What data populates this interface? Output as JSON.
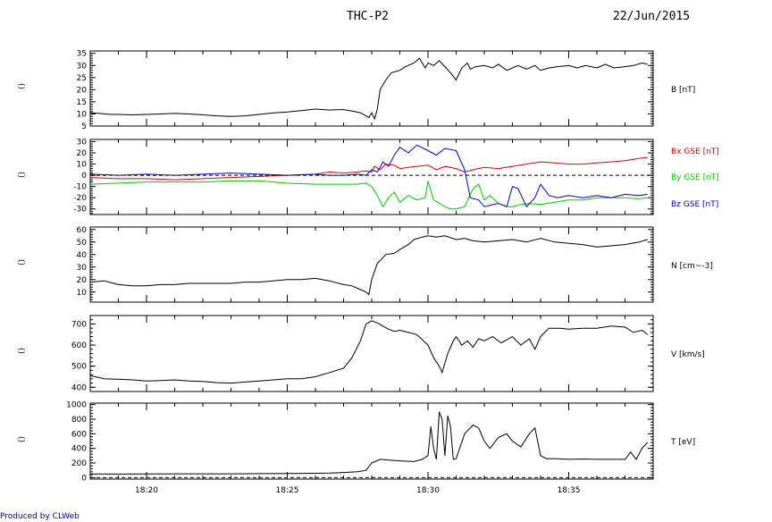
{
  "header": {
    "title": "THC-P2",
    "date": "22/Jun/2015"
  },
  "footer": {
    "text": "Produced by CLWeb"
  },
  "colors": {
    "axis": "#000000",
    "bx": "#dd0000",
    "by": "#00cc00",
    "bz": "#0000cc",
    "footer": "#00008b"
  },
  "chart_data": [
    {
      "type": "line",
      "ylabel_left": "()",
      "ylim": [
        5,
        36
      ],
      "yticks": [
        5,
        10,
        15,
        20,
        25,
        30,
        35
      ],
      "series": [
        {
          "name": "B [nT]",
          "x": [
            18.0,
            18.33,
            18.67,
            19.0,
            19.5,
            20.0,
            20.5,
            21.0,
            21.5,
            22.0,
            22.5,
            23.0,
            23.5,
            24.0,
            24.5,
            25.0,
            25.5,
            26.0,
            26.5,
            27.0,
            27.3,
            27.6,
            27.8,
            27.9,
            28.0,
            28.1,
            28.2,
            28.3,
            28.5,
            28.7,
            29.0,
            29.2,
            29.5,
            29.7,
            29.9,
            30.0,
            30.2,
            30.4,
            30.6,
            30.8,
            31.0,
            31.2,
            31.4,
            31.5,
            31.7,
            32.0,
            32.3,
            32.5,
            32.8,
            33.0,
            33.2,
            33.5,
            33.8,
            34.0,
            34.3,
            34.6,
            35.0,
            35.3,
            35.6,
            36.0,
            36.3,
            36.6,
            37.0,
            37.3,
            37.6,
            37.8
          ],
          "y": [
            10.5,
            10.2,
            9.8,
            9.8,
            9.6,
            9.8,
            10.0,
            10.2,
            10.0,
            9.6,
            9.2,
            9.0,
            9.2,
            9.8,
            10.4,
            10.8,
            11.4,
            12.0,
            11.6,
            11.8,
            11.2,
            10.5,
            9.2,
            8.5,
            10.5,
            8.0,
            12.0,
            20.0,
            24.0,
            27.0,
            28.0,
            29.5,
            31.0,
            33.0,
            29.0,
            31.0,
            30.0,
            32.0,
            29.5,
            27.0,
            24.0,
            29.0,
            31.0,
            28.5,
            29.5,
            30.0,
            29.0,
            30.5,
            28.0,
            29.0,
            30.0,
            28.5,
            30.0,
            28.0,
            29.0,
            29.5,
            30.0,
            29.0,
            30.0,
            29.0,
            30.5,
            29.0,
            29.5,
            30.0,
            31.0,
            30.5
          ],
          "color": "#000000"
        }
      ],
      "right_label": "B [nT]"
    },
    {
      "type": "line",
      "ylabel_left": "()",
      "ylim": [
        -35,
        32
      ],
      "yticks": [
        -30,
        -20,
        -10,
        0,
        10,
        20,
        30
      ],
      "zero_line": true,
      "series": [
        {
          "name": "Bx GSE [nT]",
          "color": "#dd0000",
          "x": [
            18.0,
            19.0,
            20.0,
            21.0,
            22.0,
            23.0,
            24.0,
            25.0,
            26.0,
            26.5,
            27.0,
            27.5,
            27.8,
            28.0,
            28.1,
            28.3,
            28.5,
            28.8,
            29.0,
            29.3,
            29.6,
            30.0,
            30.3,
            30.6,
            31.0,
            31.3,
            31.6,
            32.0,
            32.5,
            33.0,
            33.5,
            34.0,
            34.5,
            35.0,
            35.5,
            36.0,
            36.5,
            37.0,
            37.5,
            37.8
          ],
          "y": [
            -2,
            -3,
            -3,
            -4,
            -3,
            -2,
            -1,
            0,
            1,
            3,
            2,
            3,
            4,
            3,
            8,
            5,
            10,
            9,
            6,
            7,
            8,
            9,
            5,
            8,
            6,
            3,
            5,
            7,
            6,
            8,
            10,
            12,
            11,
            10,
            10,
            11,
            12,
            13,
            15,
            16
          ]
        },
        {
          "name": "By GSE [nT]",
          "color": "#00cc00",
          "x": [
            18.0,
            19.0,
            20.0,
            21.0,
            22.0,
            23.0,
            24.0,
            25.0,
            26.0,
            27.0,
            27.5,
            27.8,
            28.0,
            28.2,
            28.4,
            28.6,
            28.8,
            29.0,
            29.3,
            29.6,
            29.9,
            30.0,
            30.2,
            30.4,
            30.6,
            30.8,
            31.0,
            31.3,
            31.6,
            31.8,
            32.0,
            32.2,
            32.5,
            32.8,
            33.0,
            33.3,
            33.6,
            34.0,
            34.5,
            35.0,
            35.5,
            36.0,
            36.5,
            37.0,
            37.5,
            37.8
          ],
          "y": [
            -8,
            -7,
            -6,
            -6,
            -6,
            -5,
            -5,
            -7,
            -8,
            -8,
            -8,
            -7,
            -10,
            -18,
            -28,
            -20,
            -15,
            -24,
            -18,
            -22,
            -20,
            -5,
            -22,
            -25,
            -28,
            -30,
            -30,
            -28,
            -12,
            -8,
            -22,
            -18,
            -25,
            -28,
            -28,
            -26,
            -25,
            -26,
            -24,
            -22,
            -22,
            -20,
            -20,
            -20,
            -21,
            -20
          ]
        },
        {
          "name": "Bz GSE [nT]",
          "color": "#0000cc",
          "x": [
            18.0,
            19.0,
            20.0,
            21.0,
            22.0,
            23.0,
            24.0,
            25.0,
            26.0,
            26.5,
            27.0,
            27.5,
            27.8,
            28.0,
            28.2,
            28.4,
            28.6,
            28.8,
            29.0,
            29.3,
            29.6,
            30.0,
            30.3,
            30.6,
            31.0,
            31.3,
            31.5,
            31.8,
            32.0,
            32.5,
            32.8,
            33.0,
            33.2,
            33.5,
            33.8,
            34.0,
            34.3,
            34.6,
            35.0,
            35.5,
            36.0,
            36.5,
            37.0,
            37.5,
            37.8
          ],
          "y": [
            1,
            0,
            1,
            0,
            1,
            2,
            1,
            0,
            1,
            0,
            0,
            1,
            0,
            5,
            3,
            12,
            8,
            18,
            25,
            20,
            27,
            22,
            18,
            24,
            22,
            5,
            -20,
            -22,
            -28,
            -25,
            -28,
            -10,
            -12,
            -28,
            -20,
            -8,
            -18,
            -20,
            -18,
            -20,
            -18,
            -20,
            -17,
            -18,
            -17
          ]
        }
      ]
    },
    {
      "type": "line",
      "ylabel_left": "()",
      "ylim": [
        2,
        62
      ],
      "yticks": [
        10,
        20,
        30,
        40,
        50,
        60
      ],
      "series": [
        {
          "name": "N [cm^-3]",
          "color": "#000000",
          "x": [
            18.0,
            18.5,
            19.0,
            19.5,
            20.0,
            20.5,
            21.0,
            21.5,
            22.0,
            22.5,
            23.0,
            23.5,
            24.0,
            24.5,
            25.0,
            25.5,
            26.0,
            26.5,
            27.0,
            27.3,
            27.6,
            27.8,
            27.9,
            28.0,
            28.2,
            28.5,
            28.8,
            29.0,
            29.3,
            29.5,
            29.8,
            30.0,
            30.3,
            30.6,
            31.0,
            31.3,
            31.6,
            32.0,
            32.5,
            33.0,
            33.5,
            34.0,
            34.5,
            35.0,
            35.5,
            36.0,
            36.5,
            37.0,
            37.5,
            37.8
          ],
          "y": [
            18,
            19,
            16,
            15,
            15,
            16,
            16,
            17,
            17,
            17,
            17,
            18,
            18,
            19,
            20,
            20,
            21,
            19,
            16,
            15,
            12,
            10,
            8,
            20,
            33,
            40,
            41,
            44,
            48,
            52,
            54,
            55,
            54,
            55,
            52,
            53,
            51,
            50,
            51,
            52,
            50,
            53,
            50,
            49,
            48,
            46,
            47,
            48,
            50,
            52
          ]
        }
      ],
      "right_label": "N [cm^-3]"
    },
    {
      "type": "line",
      "ylabel_left": "()",
      "ylim": [
        380,
        740
      ],
      "yticks": [
        400,
        500,
        600,
        700
      ],
      "series": [
        {
          "name": "V [km/s]",
          "color": "#000000",
          "x": [
            18.0,
            18.5,
            19.0,
            19.5,
            20.0,
            20.5,
            21.0,
            21.5,
            22.0,
            22.5,
            23.0,
            23.5,
            24.0,
            24.5,
            25.0,
            25.5,
            26.0,
            26.5,
            27.0,
            27.3,
            27.6,
            27.8,
            28.0,
            28.2,
            28.4,
            28.6,
            28.8,
            29.0,
            29.3,
            29.6,
            30.0,
            30.2,
            30.4,
            30.5,
            30.7,
            30.9,
            31.0,
            31.2,
            31.4,
            31.6,
            31.8,
            32.0,
            32.3,
            32.6,
            33.0,
            33.3,
            33.6,
            33.8,
            34.0,
            34.3,
            34.7,
            35.0,
            35.5,
            36.0,
            36.5,
            37.0,
            37.3,
            37.6,
            37.8
          ],
          "y": [
            455,
            440,
            438,
            435,
            430,
            432,
            435,
            430,
            428,
            422,
            420,
            425,
            430,
            435,
            440,
            440,
            450,
            470,
            490,
            540,
            620,
            700,
            715,
            705,
            690,
            675,
            665,
            670,
            660,
            650,
            600,
            540,
            500,
            470,
            560,
            620,
            640,
            600,
            620,
            590,
            630,
            620,
            640,
            610,
            640,
            600,
            630,
            580,
            640,
            680,
            680,
            675,
            680,
            680,
            690,
            685,
            660,
            670,
            650
          ]
        }
      ],
      "right_label": "V [km/s]"
    },
    {
      "type": "line",
      "ylabel_left": "()",
      "ylim": [
        -20,
        1020
      ],
      "yticks": [
        0,
        200,
        400,
        600,
        800,
        1000
      ],
      "zero_line": true,
      "series": [
        {
          "name": "T [eV]",
          "color": "#000000",
          "x": [
            18.0,
            19.0,
            20.0,
            21.0,
            22.0,
            23.0,
            24.0,
            25.0,
            26.0,
            26.5,
            27.0,
            27.5,
            27.8,
            28.0,
            28.3,
            28.6,
            29.0,
            29.5,
            29.8,
            30.0,
            30.1,
            30.2,
            30.3,
            30.4,
            30.5,
            30.6,
            30.7,
            30.8,
            30.9,
            31.0,
            31.3,
            31.6,
            31.8,
            32.0,
            32.2,
            32.5,
            32.8,
            33.0,
            33.3,
            33.6,
            33.8,
            34.0,
            34.2,
            34.5,
            35.0,
            35.5,
            36.0,
            36.5,
            37.0,
            37.2,
            37.4,
            37.6,
            37.8
          ],
          "y": [
            50,
            48,
            50,
            52,
            52,
            52,
            55,
            56,
            60,
            62,
            70,
            80,
            100,
            200,
            250,
            240,
            230,
            220,
            250,
            300,
            700,
            400,
            250,
            900,
            800,
            300,
            850,
            700,
            250,
            260,
            600,
            720,
            680,
            500,
            400,
            550,
            600,
            500,
            420,
            600,
            680,
            300,
            260,
            260,
            250,
            255,
            250,
            250,
            250,
            350,
            250,
            400,
            480
          ]
        }
      ],
      "right_label": "T [eV]"
    }
  ],
  "xaxis": {
    "tick_labels": [
      "18:20",
      "18:25",
      "18:30",
      "18:35"
    ],
    "tick_minutes": [
      20,
      25,
      30,
      35
    ],
    "xlim_minutes": [
      18,
      38
    ]
  },
  "right_labels": {
    "b": "B [nT]",
    "bx": "Bx GSE [nT]",
    "by": "By GSE [nT]",
    "bz": "Bz GSE [nT]",
    "n": "N [cm~-3]",
    "v": "V [km/s]",
    "t": "T [eV]"
  },
  "left_labels": [
    "()",
    "()",
    "()",
    "()",
    "()"
  ]
}
